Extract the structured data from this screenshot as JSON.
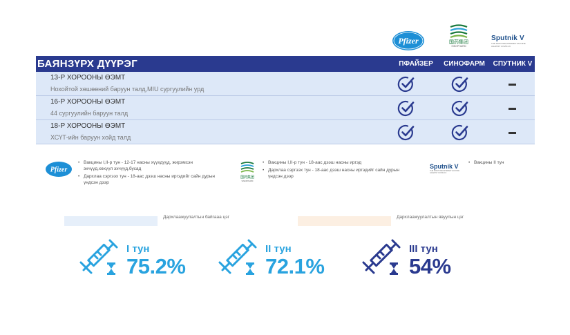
{
  "header": {
    "pfizer_logo_text": "Pfizer",
    "sinopharm_logo_cn": "国药集团",
    "sinopharm_logo_en": "SINOPHARM",
    "sputnik_logo_text": "Sputnik V",
    "sputnik_tagline": "THE FIRST REGISTERED VACCINE AGAINST COVID-19"
  },
  "table": {
    "district": "БАЯНЗҮРХ ДҮҮРЭГ",
    "columns": [
      "ПФАЙЗЕР",
      "СИНОФАРМ",
      "СПУТНИК V"
    ],
    "rows": [
      {
        "name": "13-Р ХОРООНЫ ӨЭМТ",
        "address": "Нохойтой хөшөөний баруун талд,MIU сургуулийн урд",
        "pfizer": true,
        "sinopharm": true,
        "sputnik": false
      },
      {
        "name": "16-Р ХОРООНЫ ӨЭМТ",
        "address": "44 сургуулийн баруун талд",
        "pfizer": true,
        "sinopharm": true,
        "sputnik": false
      },
      {
        "name": "18-Р ХОРООНЫ ӨЭМТ",
        "address": "ХСҮТ-ийн баруун хойд талд",
        "pfizer": true,
        "sinopharm": true,
        "sputnik": false
      }
    ],
    "check_color": "#2a3a8f"
  },
  "notes": {
    "pfizer": [
      "Вакцины I,II-р тун - 12-17 насны хүүхдүүд, жирэмсэн эхчүүд,хөхүүл эхчүүд,бусад",
      "Дархлаа сэргээх тун - 18-аас дээш насны иргэдийг сайн дурын үндсэн дээр"
    ],
    "sinopharm": [
      "Вакцины I,II-р тун - 18-аас дээш насны иргэд",
      "Дархлаа сэргээх тун - 18-аас дээш насны иргэдийг сайн дурын үндсэн дээр"
    ],
    "sputnik": [
      "Вакцины II тун"
    ]
  },
  "legend": {
    "current": "Дархлаажуулалтын байгааа цэг",
    "ongoing": "Дархлаажуулалтын явуулын цэг",
    "current_color": "#e6effa",
    "ongoing_color": "#fcefe2"
  },
  "doses": [
    {
      "label": "I тун",
      "percent": "75.2%",
      "color": "#29a3df"
    },
    {
      "label": "II тун",
      "percent": "72.1%",
      "color": "#29a3df"
    },
    {
      "label": "III тун",
      "percent": "54%",
      "color": "#2a3a8f"
    }
  ]
}
